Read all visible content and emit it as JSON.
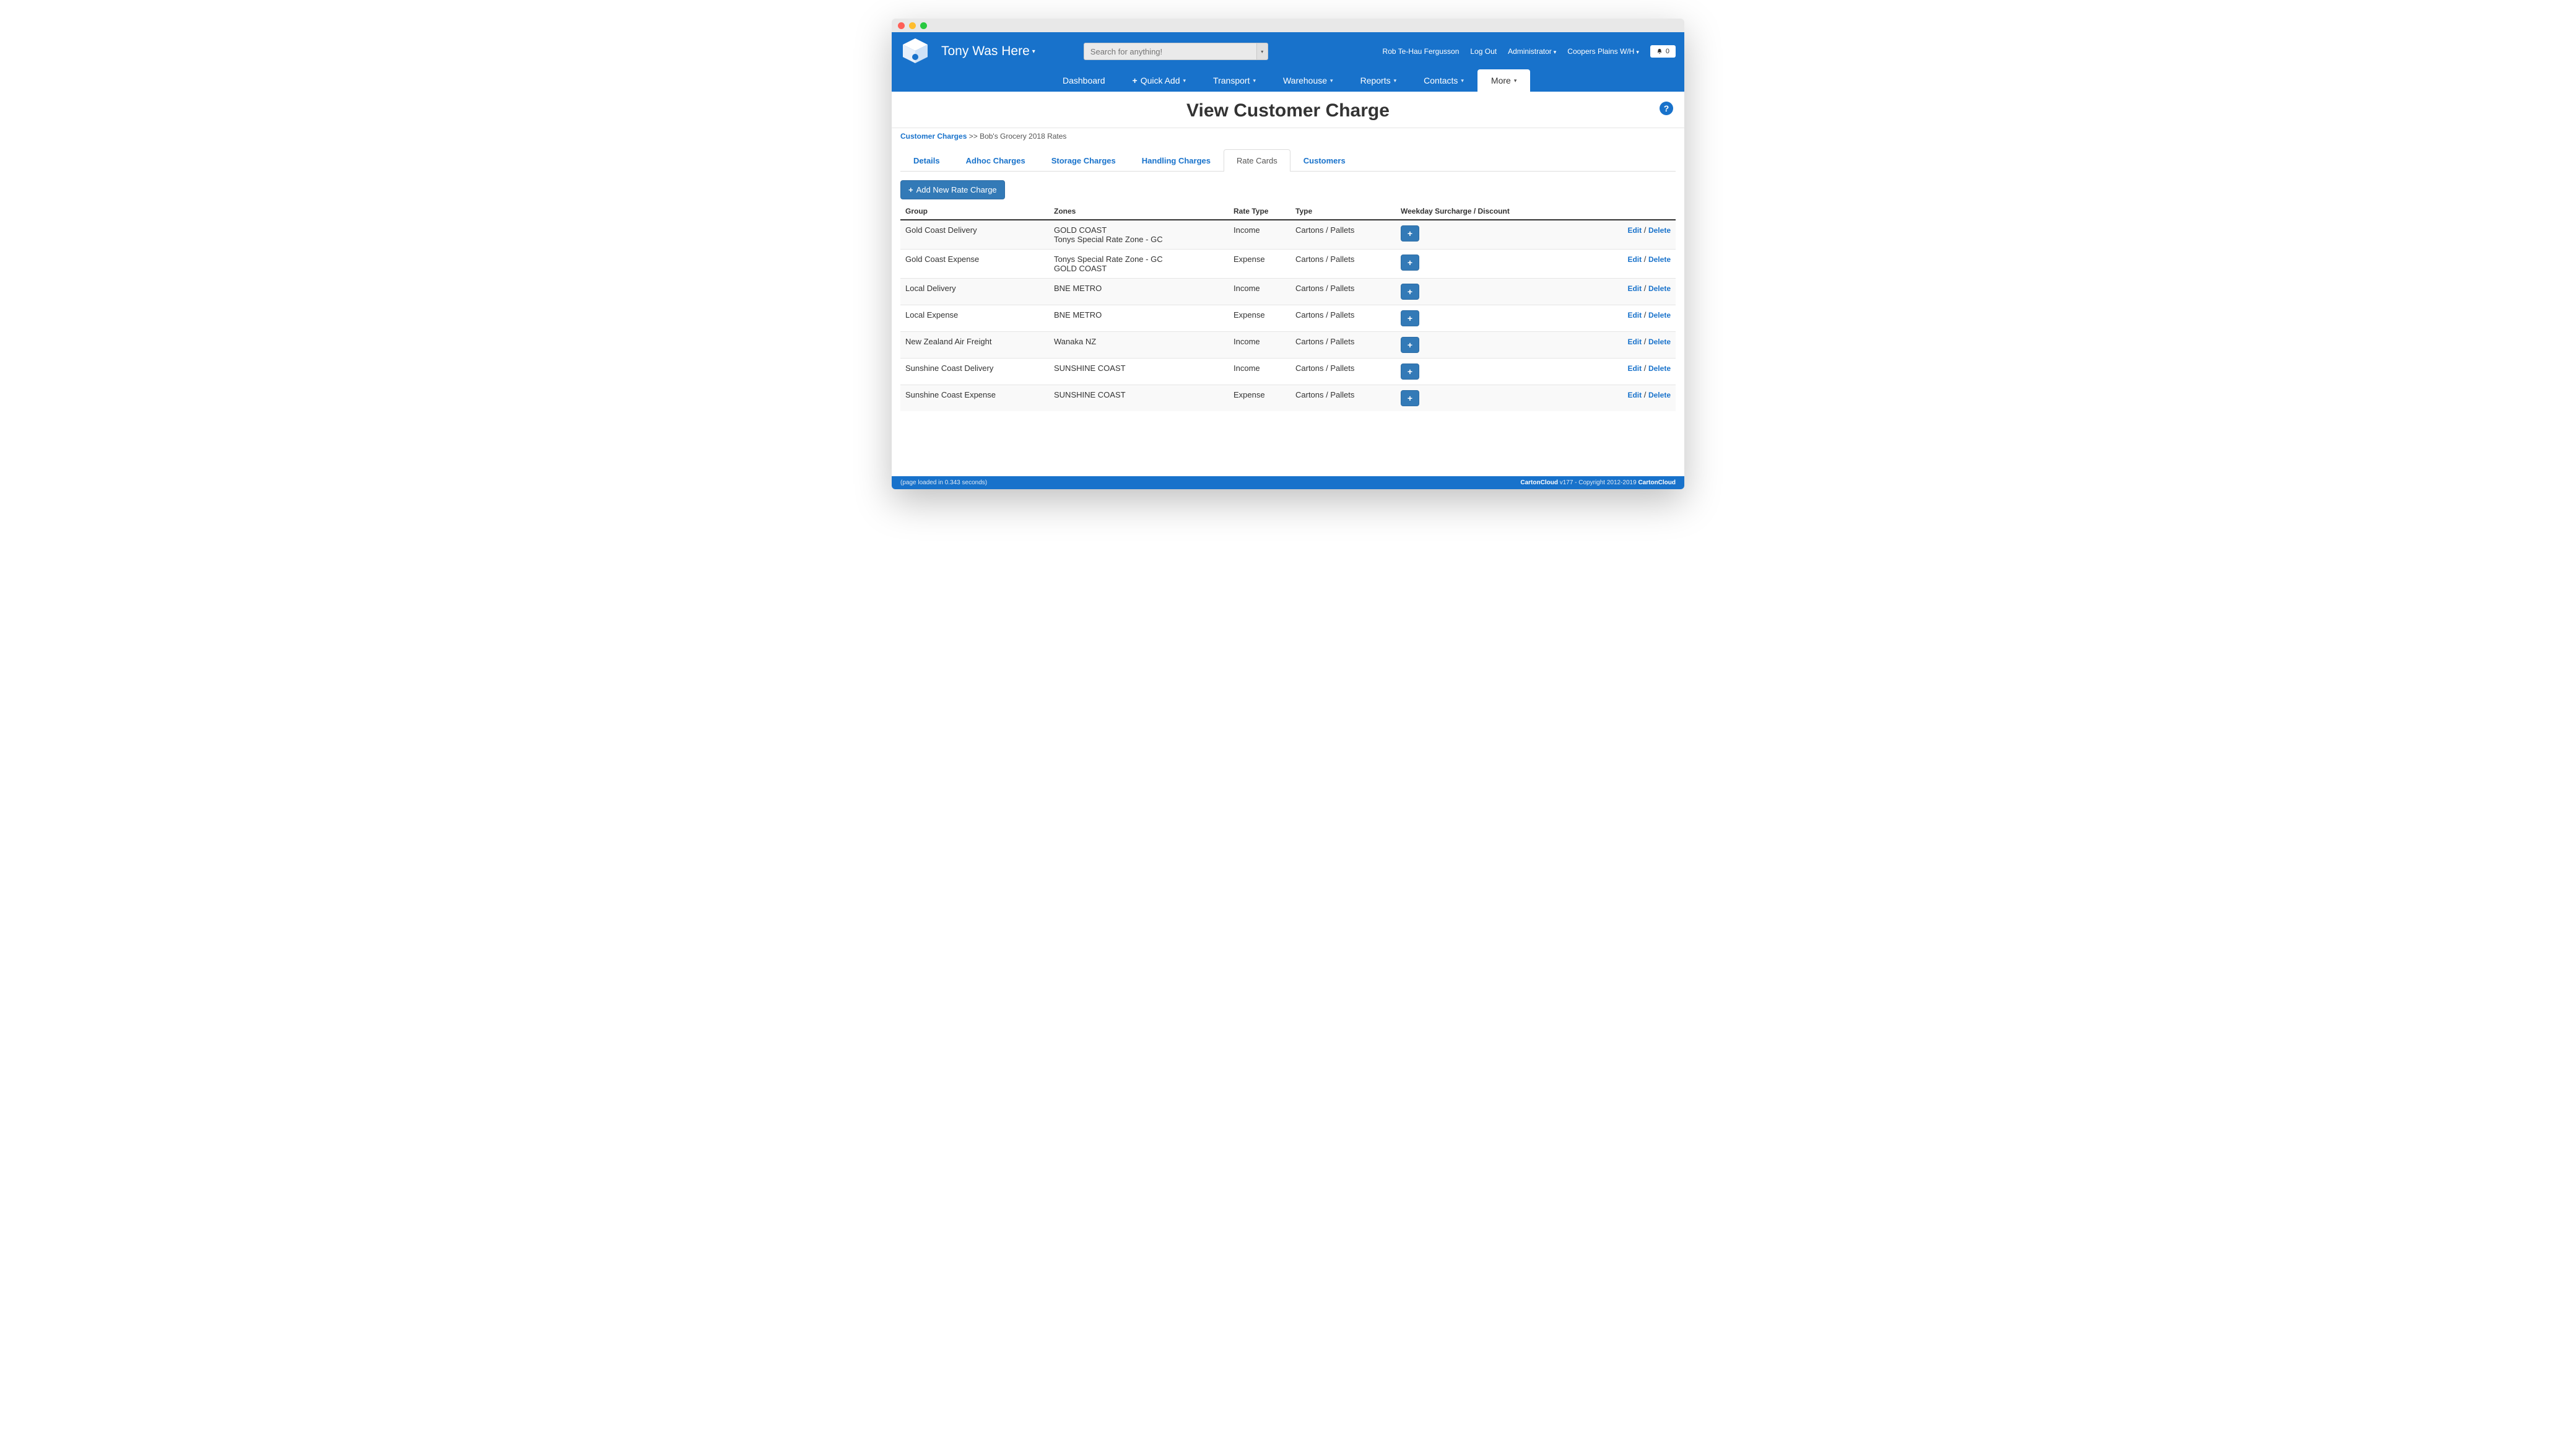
{
  "brand": "Tony Was Here",
  "search_placeholder": "Search for anything!",
  "user": "Rob Te-Hau Fergusson",
  "logout": "Log Out",
  "role": "Administrator",
  "location": "Coopers Plains W/H",
  "notif_count": "0",
  "nav": {
    "dashboard": "Dashboard",
    "quickadd": "Quick Add",
    "transport": "Transport",
    "warehouse": "Warehouse",
    "reports": "Reports",
    "contacts": "Contacts",
    "more": "More"
  },
  "page_title": "View Customer Charge",
  "breadcrumb": {
    "link": "Customer Charges",
    "sep": " >> ",
    "current": "Bob's Grocery 2018 Rates"
  },
  "tabs": {
    "details": "Details",
    "adhoc": "Adhoc Charges",
    "storage": "Storage Charges",
    "handling": "Handling Charges",
    "ratecards": "Rate Cards",
    "customers": "Customers"
  },
  "add_btn": "Add New Rate Charge",
  "columns": {
    "group": "Group",
    "zones": "Zones",
    "ratetype": "Rate Type",
    "type": "Type",
    "surcharge": "Weekday Surcharge / Discount"
  },
  "rows": [
    {
      "group": "Gold Coast Delivery",
      "zones": "GOLD COAST\nTonys Special Rate Zone - GC",
      "ratetype": "Income",
      "type": "Cartons / Pallets"
    },
    {
      "group": "Gold Coast Expense",
      "zones": "Tonys Special Rate Zone - GC\nGOLD COAST",
      "ratetype": "Expense",
      "type": "Cartons / Pallets"
    },
    {
      "group": "Local Delivery",
      "zones": "BNE METRO",
      "ratetype": "Income",
      "type": "Cartons / Pallets"
    },
    {
      "group": "Local Expense",
      "zones": "BNE METRO",
      "ratetype": "Expense",
      "type": "Cartons / Pallets"
    },
    {
      "group": "New Zealand Air Freight",
      "zones": "Wanaka NZ",
      "ratetype": "Income",
      "type": "Cartons / Pallets"
    },
    {
      "group": "Sunshine Coast Delivery",
      "zones": "SUNSHINE COAST",
      "ratetype": "Income",
      "type": "Cartons / Pallets"
    },
    {
      "group": "Sunshine Coast Expense",
      "zones": "SUNSHINE COAST",
      "ratetype": "Expense",
      "type": "Cartons / Pallets"
    }
  ],
  "action_edit": "Edit",
  "action_delete": "Delete",
  "footer_left": "(page loaded in 0.343 seconds)",
  "footer_product": "CartonCloud",
  "footer_version": " v177 - Copyright 2012-2019 ",
  "footer_company": "CartonCloud",
  "colors": {
    "primary": "#1872cb",
    "btn": "#337ab7",
    "border": "#e5e5e5"
  }
}
